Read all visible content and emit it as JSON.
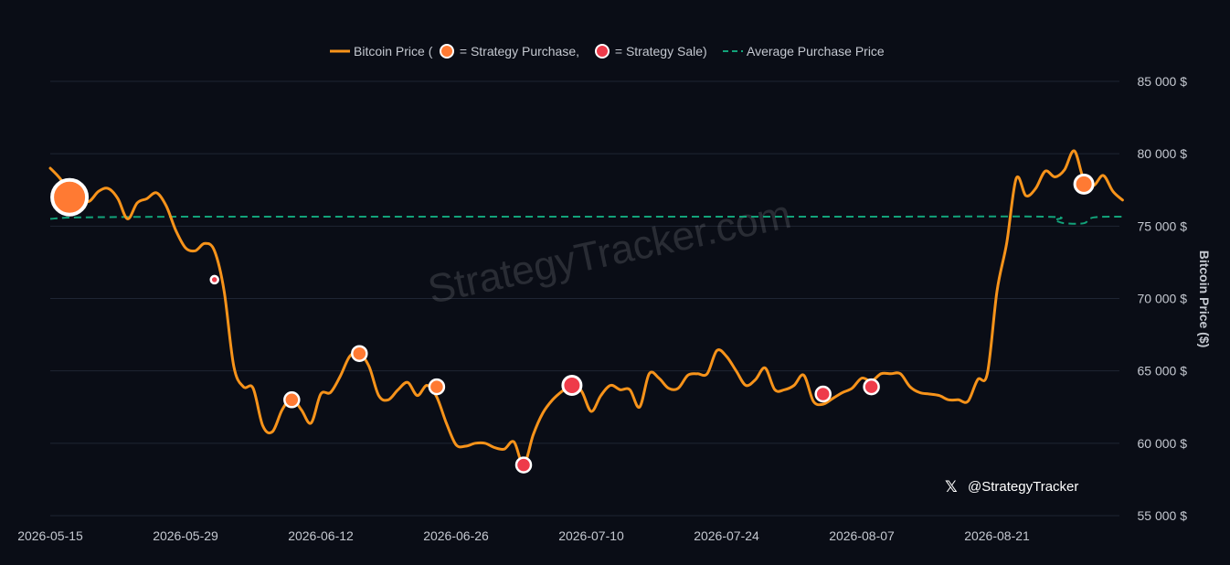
{
  "chart_data": {
    "type": "line",
    "legend": {
      "placement": "top-center",
      "price_label_before": "Bitcoin Price (",
      "purchase_label": " = Strategy Purchase, ",
      "sale_label": " = Strategy Sale)",
      "avg_label": "Average Purchase Price"
    },
    "ylabel": "Bitcoin Price ($)",
    "ylim": [
      55000,
      85000
    ],
    "y_ticks": [
      {
        "value": 85000,
        "label": "85 000 $"
      },
      {
        "value": 80000,
        "label": "80 000 $"
      },
      {
        "value": 75000,
        "label": "75 000 $"
      },
      {
        "value": 70000,
        "label": "70 000 $"
      },
      {
        "value": 65000,
        "label": "65 000 $"
      },
      {
        "value": 60000,
        "label": "60 000 $"
      },
      {
        "value": 55000,
        "label": "55 000 $"
      }
    ],
    "x_range": [
      "2026-05-15",
      "2026-09-01"
    ],
    "x_ticks": [
      "2026-05-15",
      "2026-05-29",
      "2026-06-12",
      "2026-06-26",
      "2026-07-10",
      "2026-07-24",
      "2026-08-07",
      "2026-08-21"
    ],
    "grid": true,
    "colors": {
      "price": "#f7931a",
      "purchase": "#ff7a33",
      "sale": "#ee3b4a",
      "average": "#12a37a",
      "grid": "#1f2533",
      "background": "#0a0d16"
    },
    "series": [
      {
        "name": "Bitcoin Price",
        "points": [
          [
            "2026-05-15",
            79000
          ],
          [
            "2026-05-16",
            78300
          ],
          [
            "2026-05-17",
            77300
          ],
          [
            "2026-05-18",
            76900
          ],
          [
            "2026-05-19",
            76700
          ],
          [
            "2026-05-20",
            77400
          ],
          [
            "2026-05-21",
            77600
          ],
          [
            "2026-05-22",
            76900
          ],
          [
            "2026-05-23",
            75500
          ],
          [
            "2026-05-24",
            76600
          ],
          [
            "2026-05-25",
            76900
          ],
          [
            "2026-05-26",
            77300
          ],
          [
            "2026-05-27",
            76400
          ],
          [
            "2026-05-28",
            74700
          ],
          [
            "2026-05-29",
            73500
          ],
          [
            "2026-05-30",
            73300
          ],
          [
            "2026-05-31",
            73800
          ],
          [
            "2026-06-01",
            73300
          ],
          [
            "2026-06-02",
            70500
          ],
          [
            "2026-06-03",
            65300
          ],
          [
            "2026-06-04",
            63900
          ],
          [
            "2026-06-05",
            63800
          ],
          [
            "2026-06-06",
            61200
          ],
          [
            "2026-06-07",
            60800
          ],
          [
            "2026-06-08",
            62300
          ],
          [
            "2026-06-09",
            63100
          ],
          [
            "2026-06-10",
            62300
          ],
          [
            "2026-06-11",
            61400
          ],
          [
            "2026-06-12",
            63400
          ],
          [
            "2026-06-13",
            63500
          ],
          [
            "2026-06-14",
            64600
          ],
          [
            "2026-06-15",
            66000
          ],
          [
            "2026-06-16",
            66200
          ],
          [
            "2026-06-17",
            65300
          ],
          [
            "2026-06-18",
            63300
          ],
          [
            "2026-06-19",
            63000
          ],
          [
            "2026-06-20",
            63700
          ],
          [
            "2026-06-21",
            64200
          ],
          [
            "2026-06-22",
            63300
          ],
          [
            "2026-06-23",
            64000
          ],
          [
            "2026-06-24",
            63200
          ],
          [
            "2026-06-25",
            61400
          ],
          [
            "2026-06-26",
            59900
          ],
          [
            "2026-06-27",
            59800
          ],
          [
            "2026-06-28",
            60000
          ],
          [
            "2026-06-29",
            60000
          ],
          [
            "2026-06-30",
            59700
          ],
          [
            "2026-07-01",
            59600
          ],
          [
            "2026-07-02",
            60100
          ],
          [
            "2026-07-03",
            58500
          ],
          [
            "2026-07-04",
            60600
          ],
          [
            "2026-07-05",
            62100
          ],
          [
            "2026-07-06",
            63000
          ],
          [
            "2026-07-07",
            63600
          ],
          [
            "2026-07-08",
            64000
          ],
          [
            "2026-07-09",
            63600
          ],
          [
            "2026-07-10",
            62200
          ],
          [
            "2026-07-11",
            63300
          ],
          [
            "2026-07-12",
            64000
          ],
          [
            "2026-07-13",
            63700
          ],
          [
            "2026-07-14",
            63700
          ],
          [
            "2026-07-15",
            62500
          ],
          [
            "2026-07-16",
            64800
          ],
          [
            "2026-07-17",
            64500
          ],
          [
            "2026-07-18",
            63800
          ],
          [
            "2026-07-19",
            63800
          ],
          [
            "2026-07-20",
            64700
          ],
          [
            "2026-07-21",
            64800
          ],
          [
            "2026-07-22",
            64800
          ],
          [
            "2026-07-23",
            66400
          ],
          [
            "2026-07-24",
            66000
          ],
          [
            "2026-07-25",
            65000
          ],
          [
            "2026-07-26",
            64000
          ],
          [
            "2026-07-27",
            64400
          ],
          [
            "2026-07-28",
            65200
          ],
          [
            "2026-07-29",
            63700
          ],
          [
            "2026-07-30",
            63700
          ],
          [
            "2026-07-31",
            64000
          ],
          [
            "2026-08-01",
            64700
          ],
          [
            "2026-08-02",
            62900
          ],
          [
            "2026-08-03",
            62700
          ],
          [
            "2026-08-04",
            63100
          ],
          [
            "2026-08-05",
            63500
          ],
          [
            "2026-08-06",
            63800
          ],
          [
            "2026-08-07",
            64500
          ],
          [
            "2026-08-08",
            64300
          ],
          [
            "2026-08-09",
            64800
          ],
          [
            "2026-08-10",
            64800
          ],
          [
            "2026-08-11",
            64800
          ],
          [
            "2026-08-12",
            63900
          ],
          [
            "2026-08-13",
            63500
          ],
          [
            "2026-08-14",
            63400
          ],
          [
            "2026-08-15",
            63300
          ],
          [
            "2026-08-16",
            63000
          ],
          [
            "2026-08-17",
            63000
          ],
          [
            "2026-08-18",
            62900
          ],
          [
            "2026-08-19",
            64400
          ],
          [
            "2026-08-20",
            64800
          ],
          [
            "2026-08-21",
            70500
          ],
          [
            "2026-08-22",
            73800
          ],
          [
            "2026-08-23",
            78300
          ],
          [
            "2026-08-24",
            77100
          ],
          [
            "2026-08-25",
            77600
          ],
          [
            "2026-08-26",
            78800
          ],
          [
            "2026-08-27",
            78400
          ],
          [
            "2026-08-28",
            78900
          ],
          [
            "2026-08-29",
            80200
          ],
          [
            "2026-08-30",
            78200
          ],
          [
            "2026-08-31",
            77800
          ],
          [
            "2026-09-01",
            78500
          ],
          [
            "2026-09-02",
            77400
          ],
          [
            "2026-09-03",
            76800
          ]
        ]
      },
      {
        "name": "Average Purchase Price",
        "style": "dashed",
        "points": [
          [
            "2026-05-15",
            75500
          ],
          [
            "2026-05-18",
            75600
          ],
          [
            "2026-05-29",
            75650
          ],
          [
            "2026-06-12",
            75650
          ],
          [
            "2026-07-10",
            75650
          ],
          [
            "2026-08-07",
            75650
          ],
          [
            "2026-08-26",
            75650
          ],
          [
            "2026-08-27",
            75400
          ],
          [
            "2026-08-28",
            75200
          ],
          [
            "2026-08-30",
            75200
          ],
          [
            "2026-08-31",
            75600
          ],
          [
            "2026-09-03",
            75650
          ]
        ]
      }
    ],
    "events": [
      {
        "type": "purchase",
        "date": "2026-05-17",
        "value": 77000,
        "size": "xlarge"
      },
      {
        "type": "sale",
        "date": "2026-06-01",
        "value": 71300,
        "size": "tiny"
      },
      {
        "type": "purchase",
        "date": "2026-06-09",
        "value": 63000,
        "size": "small"
      },
      {
        "type": "purchase",
        "date": "2026-06-16",
        "value": 66200,
        "size": "small"
      },
      {
        "type": "purchase",
        "date": "2026-06-24",
        "value": 63900,
        "size": "small"
      },
      {
        "type": "sale",
        "date": "2026-07-03",
        "value": 58500,
        "size": "small"
      },
      {
        "type": "sale",
        "date": "2026-07-08",
        "value": 64000,
        "size": "medium"
      },
      {
        "type": "sale",
        "date": "2026-08-03",
        "value": 63400,
        "size": "small"
      },
      {
        "type": "sale",
        "date": "2026-08-08",
        "value": 63900,
        "size": "small"
      },
      {
        "type": "purchase",
        "date": "2026-08-30",
        "value": 77900,
        "size": "medium"
      }
    ]
  },
  "watermark": "StrategyTracker.com",
  "branding": {
    "x_glyph": "𝕏",
    "handle": "@StrategyTracker"
  }
}
